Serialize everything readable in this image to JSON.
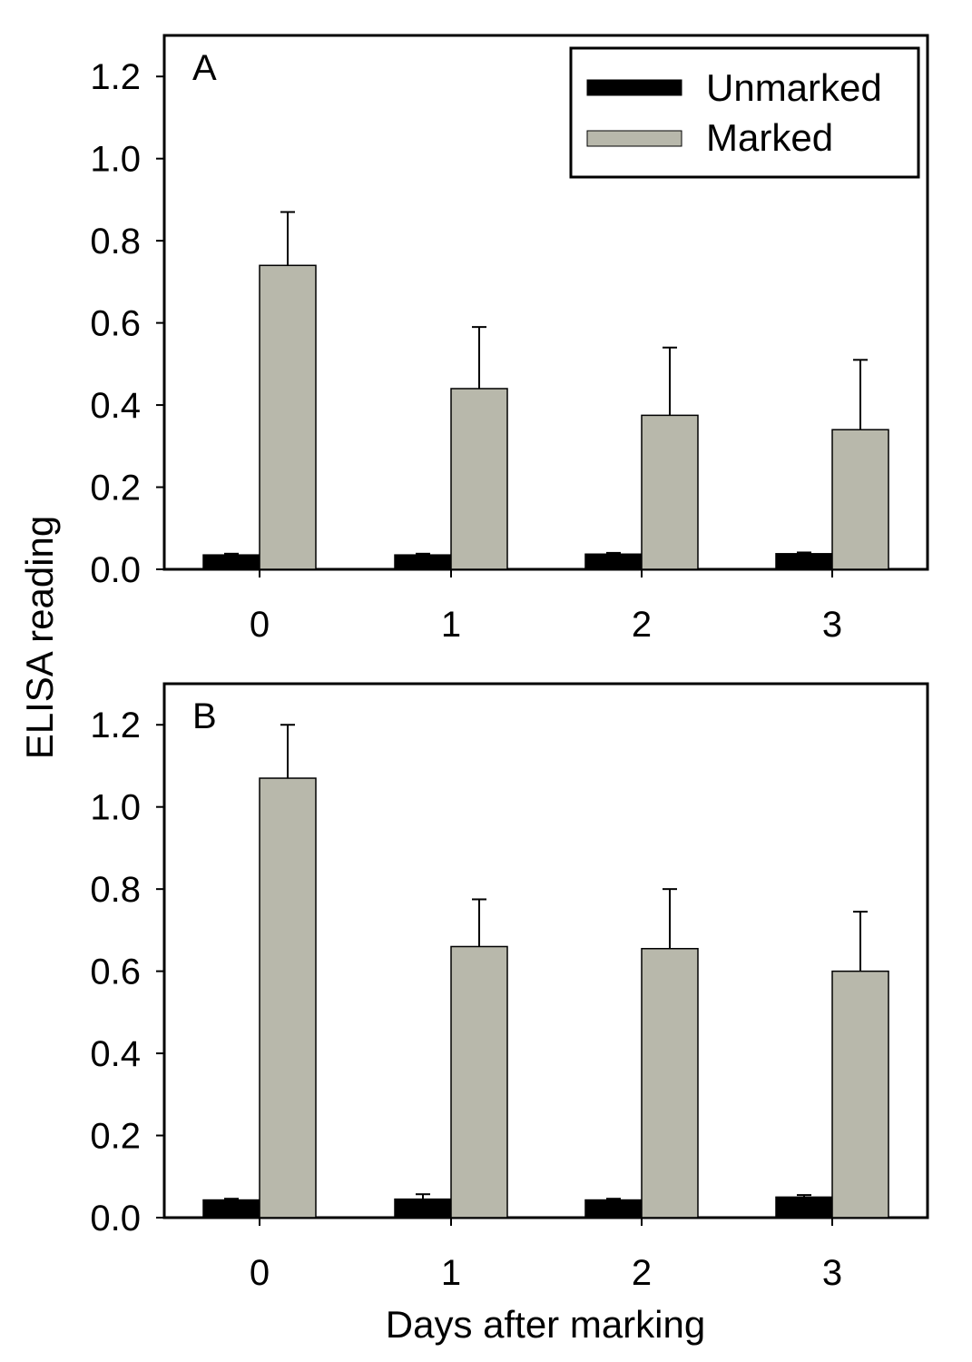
{
  "figure": {
    "ylabel": "ELISA reading",
    "xlabel": "Days after marking"
  },
  "legend": {
    "items": [
      {
        "label": "Unmarked",
        "color": "#000000"
      },
      {
        "label": "Marked",
        "color": "#b8b8ab"
      }
    ]
  },
  "chart_data": [
    {
      "type": "bar",
      "panel_label": "A",
      "categories": [
        "0",
        "1",
        "2",
        "3"
      ],
      "ylim": [
        0,
        1.3
      ],
      "yticks": [
        "0.0",
        "0.2",
        "0.4",
        "0.6",
        "0.8",
        "1.0",
        "1.2"
      ],
      "series": [
        {
          "name": "Unmarked",
          "color": "#000000",
          "values": [
            0.035,
            0.035,
            0.037,
            0.038
          ],
          "errors": [
            0.003,
            0.003,
            0.003,
            0.003
          ]
        },
        {
          "name": "Marked",
          "color": "#b8b8ab",
          "values": [
            0.74,
            0.44,
            0.375,
            0.34
          ],
          "errors": [
            0.13,
            0.15,
            0.165,
            0.17
          ]
        }
      ]
    },
    {
      "type": "bar",
      "panel_label": "B",
      "categories": [
        "0",
        "1",
        "2",
        "3"
      ],
      "ylim": [
        0,
        1.3
      ],
      "yticks": [
        "0.0",
        "0.2",
        "0.4",
        "0.6",
        "0.8",
        "1.0",
        "1.2"
      ],
      "series": [
        {
          "name": "Unmarked",
          "color": "#000000",
          "values": [
            0.043,
            0.045,
            0.043,
            0.05
          ],
          "errors": [
            0.003,
            0.012,
            0.003,
            0.005
          ]
        },
        {
          "name": "Marked",
          "color": "#b8b8ab",
          "values": [
            1.07,
            0.66,
            0.655,
            0.6
          ],
          "errors": [
            0.13,
            0.115,
            0.145,
            0.145
          ]
        }
      ]
    }
  ]
}
